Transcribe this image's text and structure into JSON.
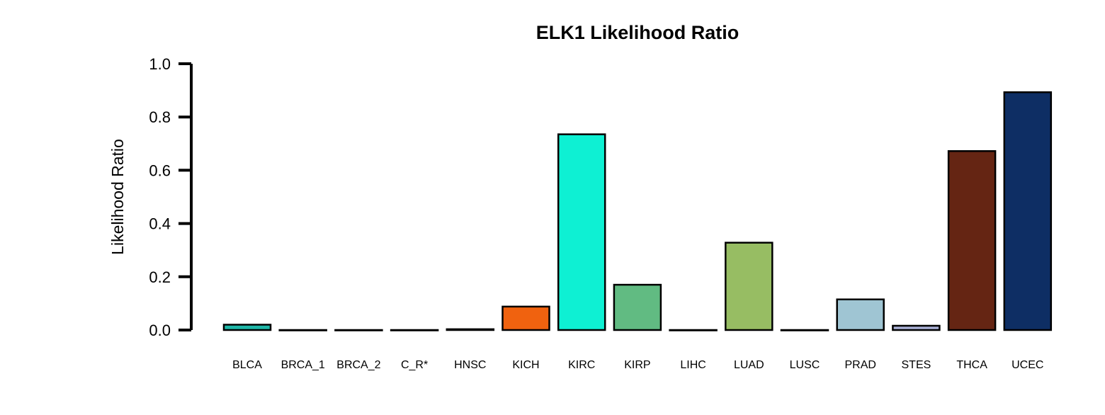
{
  "chart_data": {
    "type": "bar",
    "title": "ELK1 Likelihood Ratio",
    "xlabel": "",
    "ylabel": "Likelihood Ratio",
    "ylim": [
      0,
      1.0
    ],
    "yticks": [
      "0.0",
      "0.2",
      "0.4",
      "0.6",
      "0.8",
      "1.0"
    ],
    "grid": false,
    "categories": [
      "BLCA",
      "BRCA_1",
      "BRCA_2",
      "C_R*",
      "HNSC",
      "KICH",
      "KIRC",
      "KIRP",
      "LIHC",
      "LUAD",
      "LUSC",
      "PRAD",
      "STES",
      "THCA",
      "UCEC"
    ],
    "values": [
      0.02,
      0.0,
      0.0,
      0.0,
      0.003,
      0.088,
      0.735,
      0.17,
      0.0,
      0.328,
      0.0,
      0.115,
      0.016,
      0.672,
      0.893
    ],
    "colors": [
      "#1FB7A8",
      "#000000",
      "#000000",
      "#000000",
      "#000000",
      "#F0620F",
      "#0EF0D3",
      "#61BB82",
      "#000000",
      "#97BD63",
      "#000000",
      "#9FC5D3",
      "#A9B0D6",
      "#652513",
      "#0E2E64"
    ]
  }
}
